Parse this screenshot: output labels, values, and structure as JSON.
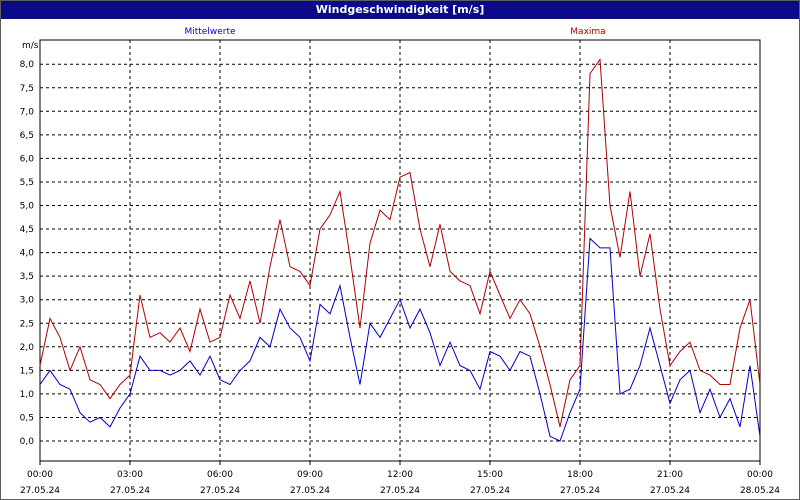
{
  "window": {
    "title": "Windgeschwindigkeit [m/s]"
  },
  "colors": {
    "titlebar": "#0b0b8a",
    "mittel": "#0000cc",
    "maxima": "#b00000",
    "grid": "#000000"
  },
  "chart_data": {
    "type": "line",
    "title": "Windgeschwindigkeit [m/s]",
    "ylabel": "m/s",
    "xlabel": "",
    "ylim": [
      0,
      8
    ],
    "xlim_hours": [
      0,
      24
    ],
    "grid": true,
    "legend_placement": "top",
    "y_ticks": [
      "0,0",
      "0,5",
      "1,0",
      "1,5",
      "2,0",
      "2,5",
      "3,0",
      "3,5",
      "4,0",
      "4,5",
      "5,0",
      "5,5",
      "6,0",
      "6,5",
      "7,0",
      "7,5",
      "8,0"
    ],
    "x_ticks": [
      {
        "time": "00:00",
        "date": "27.05.24"
      },
      {
        "time": "03:00",
        "date": "27.05.24"
      },
      {
        "time": "06:00",
        "date": "27.05.24"
      },
      {
        "time": "09:00",
        "date": "27.05.24"
      },
      {
        "time": "12:00",
        "date": "27.05.24"
      },
      {
        "time": "15:00",
        "date": "27.05.24"
      },
      {
        "time": "18:00",
        "date": "27.05.24"
      },
      {
        "time": "21:00",
        "date": "27.05.24"
      },
      {
        "time": "00:00",
        "date": "28.05.24"
      }
    ],
    "series": [
      {
        "name": "Mittelwerte",
        "color": "#0000cc",
        "x": [
          "00:00",
          "00:20",
          "00:40",
          "01:00",
          "01:20",
          "01:40",
          "02:00",
          "02:20",
          "02:40",
          "03:00",
          "03:20",
          "03:40",
          "04:00",
          "04:20",
          "04:40",
          "05:00",
          "05:20",
          "05:40",
          "06:00",
          "06:20",
          "06:40",
          "07:00",
          "07:20",
          "07:40",
          "08:00",
          "08:20",
          "08:40",
          "09:00",
          "09:20",
          "09:40",
          "10:00",
          "10:20",
          "10:40",
          "11:00",
          "11:20",
          "11:40",
          "12:00",
          "12:20",
          "12:40",
          "13:00",
          "13:20",
          "13:40",
          "14:00",
          "14:20",
          "14:40",
          "15:00",
          "15:20",
          "15:40",
          "16:00",
          "16:20",
          "16:40",
          "17:00",
          "17:20",
          "17:40",
          "18:00",
          "18:20",
          "18:40",
          "19:00",
          "19:20",
          "19:40",
          "20:00",
          "20:20",
          "20:40",
          "21:00",
          "21:20",
          "21:40",
          "22:00",
          "22:20",
          "22:40",
          "23:00",
          "23:20",
          "23:40",
          "24:00"
        ],
        "values": [
          1.2,
          1.5,
          1.2,
          1.1,
          0.6,
          0.4,
          0.5,
          0.3,
          0.7,
          1.0,
          1.8,
          1.5,
          1.5,
          1.4,
          1.5,
          1.7,
          1.4,
          1.8,
          1.3,
          1.2,
          1.5,
          1.7,
          2.2,
          2.0,
          2.8,
          2.4,
          2.2,
          1.7,
          2.9,
          2.7,
          3.3,
          2.2,
          1.2,
          2.5,
          2.2,
          2.6,
          3.0,
          2.4,
          2.8,
          2.3,
          1.6,
          2.1,
          1.6,
          1.5,
          1.1,
          1.9,
          1.8,
          1.5,
          1.9,
          1.8,
          1.0,
          0.1,
          0.0,
          0.6,
          1.1,
          4.3,
          4.1,
          4.1,
          1.0,
          1.1,
          1.6,
          2.4,
          1.6,
          0.8,
          1.3,
          1.5,
          0.6,
          1.1,
          0.5,
          0.9,
          0.3,
          1.6,
          0.1
        ]
      },
      {
        "name": "Maxima",
        "color": "#b00000",
        "x": [
          "00:00",
          "00:20",
          "00:40",
          "01:00",
          "01:20",
          "01:40",
          "02:00",
          "02:20",
          "02:40",
          "03:00",
          "03:20",
          "03:40",
          "04:00",
          "04:20",
          "04:40",
          "05:00",
          "05:20",
          "05:40",
          "06:00",
          "06:20",
          "06:40",
          "07:00",
          "07:20",
          "07:40",
          "08:00",
          "08:20",
          "08:40",
          "09:00",
          "09:20",
          "09:40",
          "10:00",
          "10:20",
          "10:40",
          "11:00",
          "11:20",
          "11:40",
          "12:00",
          "12:20",
          "12:40",
          "13:00",
          "13:20",
          "13:40",
          "14:00",
          "14:20",
          "14:40",
          "15:00",
          "15:20",
          "15:40",
          "16:00",
          "16:20",
          "16:40",
          "17:00",
          "17:20",
          "17:40",
          "18:00",
          "18:20",
          "18:40",
          "19:00",
          "19:20",
          "19:40",
          "20:00",
          "20:20",
          "20:40",
          "21:00",
          "21:20",
          "21:40",
          "22:00",
          "22:20",
          "22:40",
          "23:00",
          "23:20",
          "23:40",
          "24:00"
        ],
        "values": [
          1.6,
          2.6,
          2.2,
          1.5,
          2.0,
          1.3,
          1.2,
          0.9,
          1.2,
          1.4,
          3.1,
          2.2,
          2.3,
          2.1,
          2.4,
          1.9,
          2.8,
          2.1,
          2.2,
          3.1,
          2.6,
          3.4,
          2.5,
          3.7,
          4.7,
          3.7,
          3.6,
          3.3,
          4.5,
          4.8,
          5.3,
          3.9,
          2.4,
          4.2,
          4.9,
          4.7,
          5.6,
          5.7,
          4.5,
          3.7,
          4.6,
          3.6,
          3.4,
          3.3,
          2.7,
          3.6,
          3.1,
          2.6,
          3.0,
          2.7,
          2.0,
          1.2,
          0.3,
          1.3,
          1.6,
          7.8,
          8.1,
          5.0,
          3.9,
          5.3,
          3.5,
          4.4,
          2.8,
          1.6,
          1.9,
          2.1,
          1.5,
          1.4,
          1.2,
          1.2,
          2.4,
          3.0,
          1.2
        ]
      }
    ]
  }
}
